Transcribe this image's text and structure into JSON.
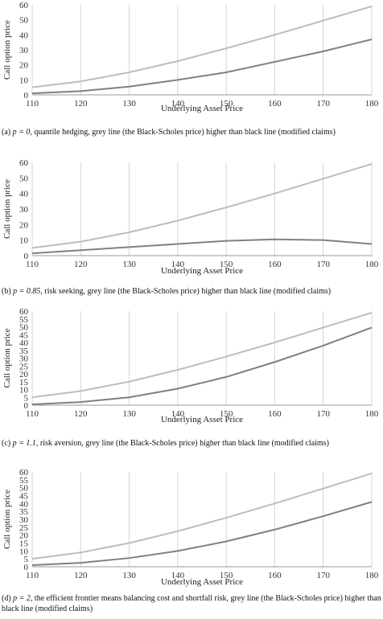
{
  "chart_data": [
    {
      "type": "line",
      "x": [
        110,
        120,
        130,
        140,
        150,
        160,
        170,
        180
      ],
      "xlabel": "Underlying Asset Price",
      "ylabel": "Call option price",
      "xlim": [
        110,
        180
      ],
      "ylim": [
        0,
        60
      ],
      "xticks": [
        "110",
        "120",
        "130",
        "140",
        "150",
        "160",
        "170",
        "180"
      ],
      "yticks": [
        "0",
        "10",
        "20",
        "30",
        "40",
        "50",
        "60"
      ],
      "grid": "vertical",
      "series": [
        {
          "color": "#bdbdbd",
          "values": [
            5,
            9,
            15,
            22.5,
            31,
            40,
            49.5,
            59
          ]
        },
        {
          "color": "#808080",
          "values": [
            1,
            2.5,
            5.5,
            10,
            15,
            22,
            29,
            37
          ]
        }
      ],
      "caption": {
        "label": "(a)",
        "p": "p = 0",
        "text": ", quantile hedging, grey line (the Black-Scholes price) higher than black line (modified claims)"
      }
    },
    {
      "type": "line",
      "x": [
        110,
        120,
        130,
        140,
        150,
        160,
        170,
        180
      ],
      "xlabel": "Underlying Asset Price",
      "ylabel": "Call option price",
      "xlim": [
        110,
        180
      ],
      "ylim": [
        0,
        60
      ],
      "xticks": [
        "110",
        "120",
        "130",
        "140",
        "150",
        "160",
        "170",
        "180"
      ],
      "yticks": [
        "0",
        "10",
        "20",
        "30",
        "40",
        "50",
        "60"
      ],
      "grid": "vertical",
      "series": [
        {
          "color": "#bdbdbd",
          "values": [
            5,
            9,
            15,
            22.5,
            31,
            40,
            49.5,
            59
          ]
        },
        {
          "color": "#808080",
          "values": [
            1.5,
            3.5,
            5.5,
            7.5,
            9.5,
            10.5,
            10,
            7.5
          ]
        }
      ],
      "caption": {
        "label": "(b)",
        "p": "p = 0.85",
        "text": ", risk seeking, grey line (the Black-Scholes price) higher than black line (modified claims)"
      }
    },
    {
      "type": "line",
      "x": [
        110,
        120,
        130,
        140,
        150,
        160,
        170,
        180
      ],
      "xlabel": "Underlying Asset Price",
      "ylabel": "Call option price",
      "xlim": [
        110,
        180
      ],
      "ylim": [
        0,
        60
      ],
      "xticks": [
        "110",
        "120",
        "130",
        "140",
        "150",
        "160",
        "170",
        "180"
      ],
      "yticks": [
        "0",
        "5",
        "10",
        "15",
        "20",
        "25",
        "30",
        "35",
        "40",
        "45",
        "50",
        "55",
        "60"
      ],
      "grid": "vertical",
      "series": [
        {
          "color": "#bdbdbd",
          "values": [
            5,
            9,
            15,
            22.5,
            31,
            40,
            49.5,
            59
          ]
        },
        {
          "color": "#808080",
          "values": [
            0.5,
            2,
            5,
            10.5,
            18,
            27.5,
            38,
            49.5
          ]
        }
      ],
      "caption": {
        "label": "(c)",
        "p": "p = 1.1",
        "text": ", risk aversion, grey line (the Black-Scholes price) higher than black line (modified claims)"
      }
    },
    {
      "type": "line",
      "x": [
        110,
        120,
        130,
        140,
        150,
        160,
        170,
        180
      ],
      "xlabel": "Underlying Asset Price",
      "ylabel": "Call option price",
      "xlim": [
        110,
        180
      ],
      "ylim": [
        0,
        60
      ],
      "xticks": [
        "110",
        "120",
        "130",
        "140",
        "150",
        "160",
        "170",
        "180"
      ],
      "yticks": [
        "0",
        "5",
        "10",
        "15",
        "20",
        "25",
        "30",
        "35",
        "40",
        "45",
        "50",
        "55",
        "60"
      ],
      "grid": "vertical",
      "series": [
        {
          "color": "#bdbdbd",
          "values": [
            5,
            9,
            15,
            22.5,
            31,
            40,
            49.5,
            59
          ]
        },
        {
          "color": "#808080",
          "values": [
            1,
            2.5,
            5.5,
            10,
            16,
            23.5,
            32,
            41
          ]
        }
      ],
      "caption": {
        "label": "(d)",
        "p": "p = 2",
        "text": ", the efficient frontier means balancing cost and shortfall risk, grey line (the Black-Scholes price) higher than black line (modified claims)"
      }
    }
  ]
}
